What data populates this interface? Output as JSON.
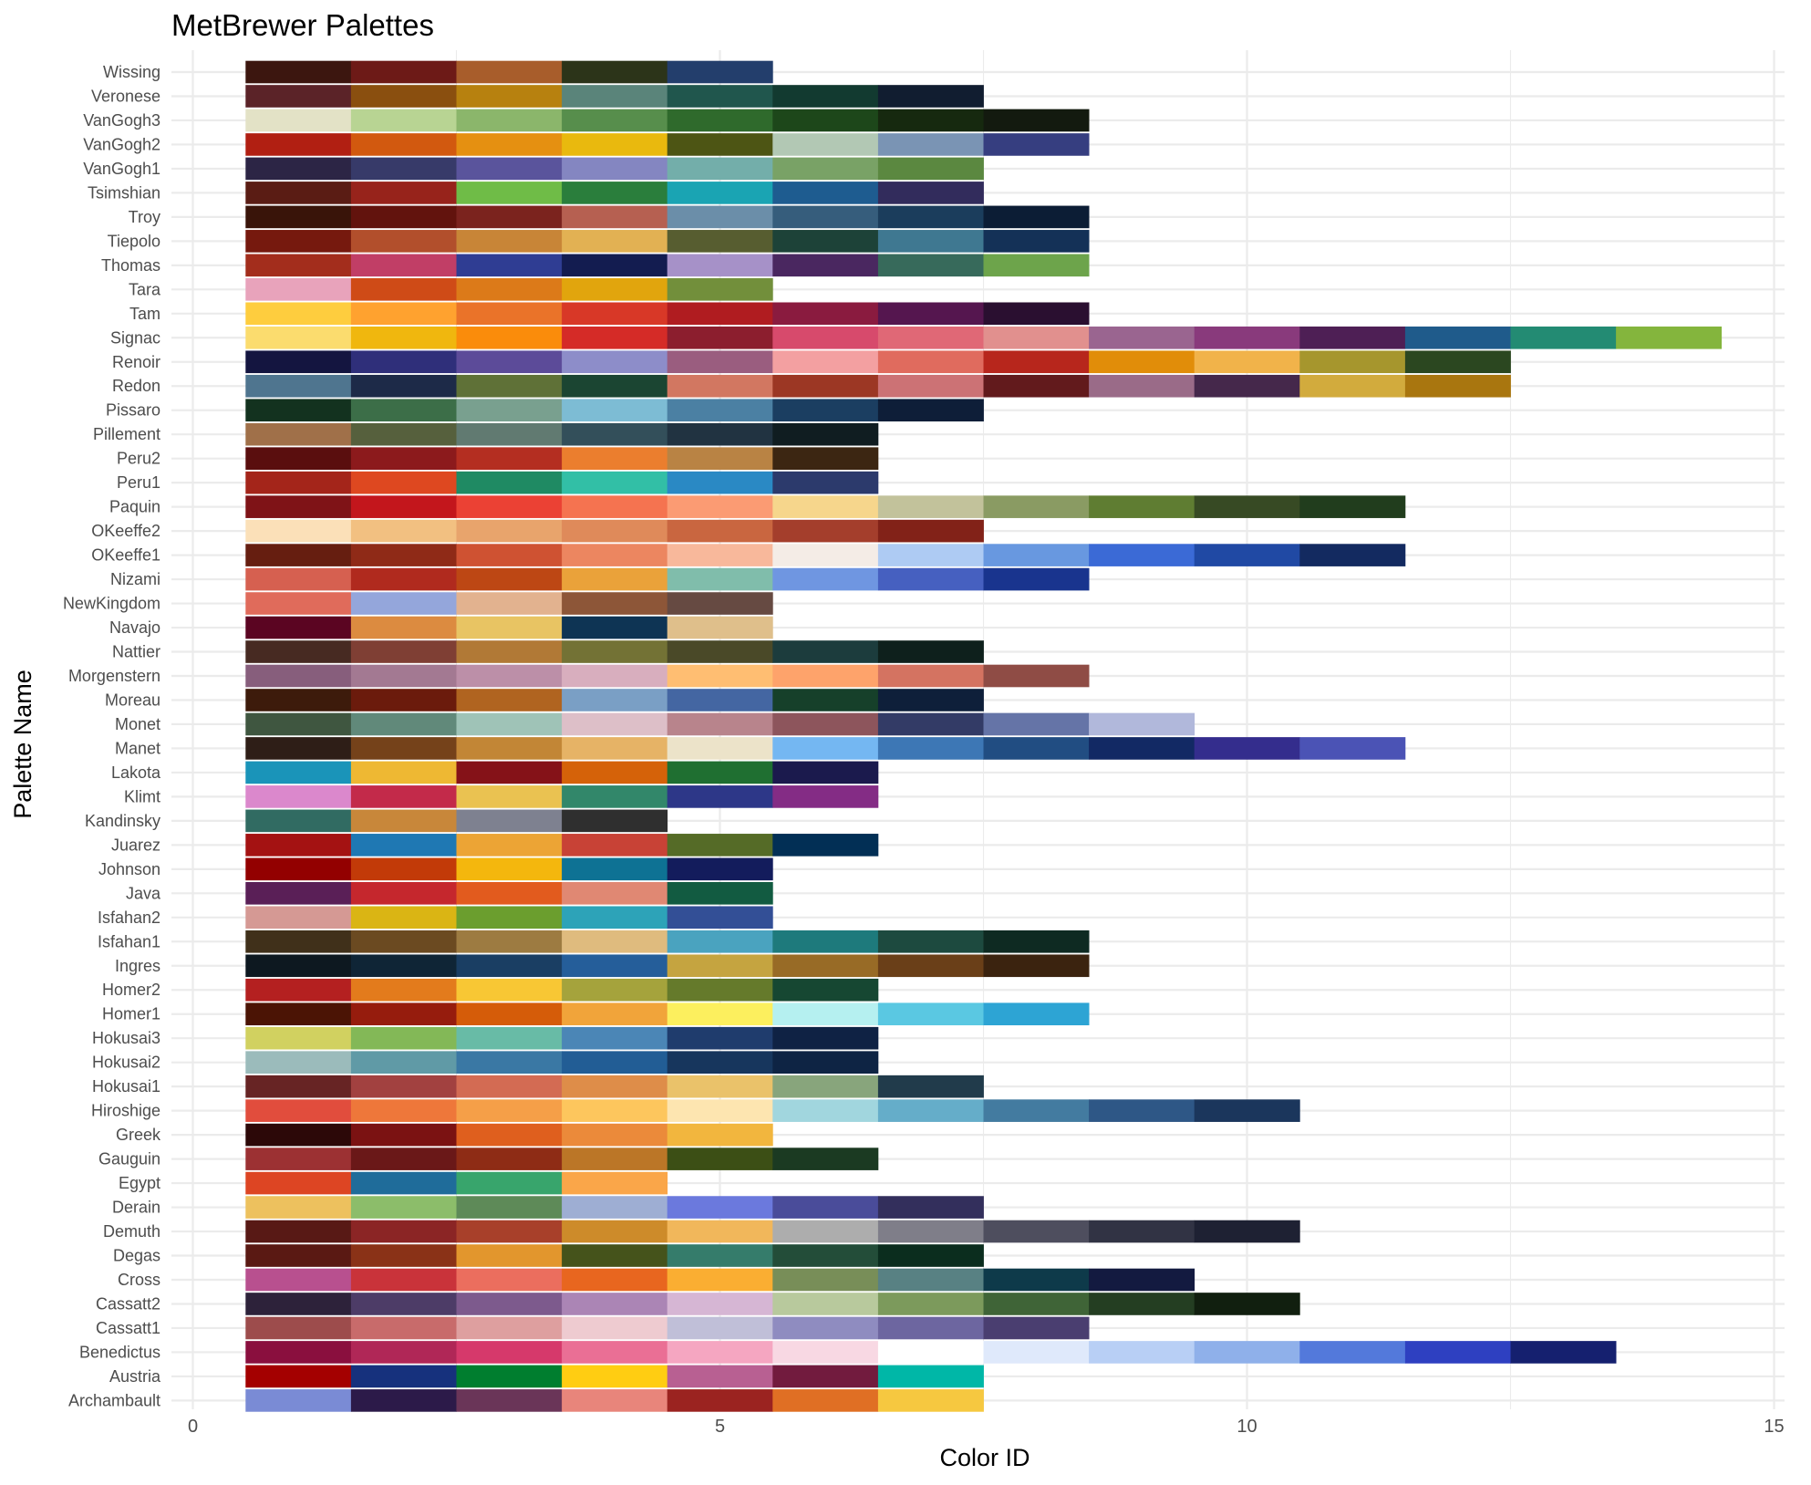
{
  "chart_data": {
    "type": "heatmap",
    "title": "MetBrewer Palettes",
    "xlabel": "Color ID",
    "ylabel": "Palette Name",
    "xlim": [
      -0.2,
      15
    ],
    "x_ticks": [
      0,
      5,
      10,
      15
    ],
    "grid": "on",
    "palettes": [
      {
        "name": "Archambault",
        "colors": [
          "#7a8bd5",
          "#2c1a49",
          "#6a3558",
          "#e8857b",
          "#9b2320",
          "#e06f24",
          "#f6c840"
        ]
      },
      {
        "name": "Austria",
        "colors": [
          "#a40000",
          "#16317d",
          "#007e2f",
          "#ffcd12",
          "#b86092",
          "#721b3e",
          "#00b7a7"
        ]
      },
      {
        "name": "Benedictus",
        "colors": [
          "#8a0f3e",
          "#b02757",
          "#d6396b",
          "#ea6f95",
          "#f5a6c1",
          "#f8d8e3",
          "#ffffff",
          "#dfe9fb",
          "#b8cff5",
          "#8fb0ea",
          "#5379db",
          "#2e40c1",
          "#15206f"
        ]
      },
      {
        "name": "Cassatt1",
        "colors": [
          "#9d4c4c",
          "#c86b6b",
          "#de9f9f",
          "#eecbd0",
          "#c0bfd8",
          "#8f8cc0",
          "#6d66a0",
          "#4a3e70"
        ]
      },
      {
        "name": "Cassatt2",
        "colors": [
          "#2d223a",
          "#4d3c67",
          "#7d5a8d",
          "#ab85b5",
          "#d6b6d4",
          "#b8c99d",
          "#7c9a5c",
          "#3f6437",
          "#243e22",
          "#111f0f"
        ]
      },
      {
        "name": "Cross",
        "colors": [
          "#b8508f",
          "#c9333a",
          "#eb6e5e",
          "#e8661f",
          "#faae32",
          "#788e58",
          "#588183",
          "#0e3a4a",
          "#131a40"
        ]
      },
      {
        "name": "Degas",
        "colors": [
          "#5a1913",
          "#8a3217",
          "#e2962d",
          "#45531b",
          "#357c6b",
          "#234d39",
          "#0b2d1e"
        ]
      },
      {
        "name": "Demuth",
        "colors": [
          "#581915",
          "#8b2525",
          "#a8402a",
          "#cd8b2a",
          "#f1b75b",
          "#adadad",
          "#7f7e89",
          "#4e4e5e",
          "#313344",
          "#1e2133"
        ]
      },
      {
        "name": "Derain",
        "colors": [
          "#edc15e",
          "#8cbd6a",
          "#5e8a58",
          "#9eaed3",
          "#6b79dd",
          "#4a4c9a",
          "#332f5c"
        ]
      },
      {
        "name": "Egypt",
        "colors": [
          "#dd4523",
          "#1f6c9a",
          "#38a56c",
          "#faa649"
        ]
      },
      {
        "name": "Gauguin",
        "colors": [
          "#9c3133",
          "#6a1818",
          "#8e2c15",
          "#bb7627",
          "#3c4f15",
          "#1b3a22"
        ]
      },
      {
        "name": "Greek",
        "colors": [
          "#2c0808",
          "#7b1212",
          "#df5f1e",
          "#eb8a3a",
          "#f2b63e"
        ]
      },
      {
        "name": "Hiroshige",
        "colors": [
          "#e14d3d",
          "#ee773a",
          "#f59f48",
          "#fdc65d",
          "#fde5b0",
          "#a1d6de",
          "#65adc9",
          "#437ba0",
          "#2e5786",
          "#1b365c"
        ]
      },
      {
        "name": "Hokusai1",
        "colors": [
          "#672424",
          "#a24140",
          "#d36b53",
          "#de8d49",
          "#eac26a",
          "#88a57c",
          "#213b4b"
        ]
      },
      {
        "name": "Hokusai2",
        "colors": [
          "#9bbbbb",
          "#609aa6",
          "#3a78a4",
          "#225d95",
          "#17365d",
          "#0e2444"
        ]
      },
      {
        "name": "Hokusai3",
        "colors": [
          "#d1d160",
          "#83b857",
          "#68bba6",
          "#4b86b6",
          "#1f3c6d",
          "#0f2244"
        ]
      },
      {
        "name": "Homer1",
        "colors": [
          "#4b1405",
          "#961c0d",
          "#d55c09",
          "#f1a43a",
          "#fcef5e",
          "#b5f0f0",
          "#5ac8e2",
          "#2da4d4"
        ]
      },
      {
        "name": "Homer2",
        "colors": [
          "#b42020",
          "#e37b1c",
          "#f8c734",
          "#a5a33c",
          "#657a2b",
          "#164732"
        ]
      },
      {
        "name": "Ingres",
        "colors": [
          "#0d1820",
          "#0f2536",
          "#1a3e63",
          "#255e9a",
          "#c5a440",
          "#986b26",
          "#6a3f18",
          "#3b230f"
        ]
      },
      {
        "name": "Isfahan1",
        "colors": [
          "#40301a",
          "#6b4a21",
          "#9d7b41",
          "#dfbb7e",
          "#4aa3bf",
          "#1e7a7c",
          "#1d4a3f",
          "#0e2a22"
        ]
      },
      {
        "name": "Isfahan2",
        "colors": [
          "#d59994",
          "#dab514",
          "#6b9e2e",
          "#2da3b8",
          "#334f96"
        ]
      },
      {
        "name": "Java",
        "colors": [
          "#5a1f57",
          "#c5272d",
          "#e25b1e",
          "#e08873",
          "#125b41"
        ]
      },
      {
        "name": "Johnson",
        "colors": [
          "#930000",
          "#c23a08",
          "#f4b70d",
          "#0e7294",
          "#131c5c"
        ]
      },
      {
        "name": "Juarez",
        "colors": [
          "#a41212",
          "#1f78b3",
          "#eca435",
          "#c84236",
          "#556b27",
          "#022f55"
        ]
      },
      {
        "name": "Kandinsky",
        "colors": [
          "#316b62",
          "#c8873a",
          "#7e8190",
          "#2f2f2f"
        ]
      },
      {
        "name": "Klimt",
        "colors": [
          "#db88cc",
          "#c32a4a",
          "#eac251",
          "#32876a",
          "#2d3788",
          "#842c85"
        ]
      },
      {
        "name": "Lakota",
        "colors": [
          "#1a94b9",
          "#eeb833",
          "#851218",
          "#d56209",
          "#1f6f31",
          "#1b1a4d"
        ]
      },
      {
        "name": "Manet",
        "colors": [
          "#2e1e17",
          "#75421a",
          "#c28636",
          "#e6b366",
          "#ece3c9",
          "#74b7f2",
          "#3d77b5",
          "#214d82",
          "#122964",
          "#342d8d",
          "#4b53b5"
        ]
      },
      {
        "name": "Monet",
        "colors": [
          "#3f5640",
          "#61897a",
          "#9fc3b7",
          "#ddbfc8",
          "#b8848c",
          "#8d555c",
          "#333b66",
          "#6574a7",
          "#b1b8db"
        ]
      },
      {
        "name": "Moreau",
        "colors": [
          "#3d1b0b",
          "#6b1b0c",
          "#b06420",
          "#7a9fc5",
          "#4466a2",
          "#16402a",
          "#0e1f3a"
        ]
      },
      {
        "name": "Morgenstern",
        "colors": [
          "#875e7c",
          "#a37992",
          "#bc8fa8",
          "#d8aebe",
          "#ffbe72",
          "#fea36b",
          "#d47361",
          "#8f4c45"
        ]
      },
      {
        "name": "Nattier",
        "colors": [
          "#472a22",
          "#7f3f34",
          "#b17936",
          "#737235",
          "#4a4928",
          "#1c3c3d",
          "#0e201c"
        ]
      },
      {
        "name": "Navajo",
        "colors": [
          "#5b0522",
          "#dc8b40",
          "#e8c463",
          "#0e3454",
          "#dfbf8b"
        ]
      },
      {
        "name": "NewKingdom",
        "colors": [
          "#e06b5b",
          "#94a6db",
          "#e2b28f",
          "#8d5638",
          "#664a42"
        ]
      },
      {
        "name": "Nizami",
        "colors": [
          "#d66050",
          "#b02a1e",
          "#bd4714",
          "#eaa23a",
          "#80bdab",
          "#6f96e1",
          "#4660c0",
          "#19348e"
        ]
      },
      {
        "name": "OKeeffe1",
        "colors": [
          "#661e10",
          "#8f2a17",
          "#cf5232",
          "#ec8660",
          "#f8b89b",
          "#f4ece6",
          "#aecbf3",
          "#6898e0",
          "#3b6ad6",
          "#2049a4",
          "#132a60"
        ]
      },
      {
        "name": "OKeeffe2",
        "colors": [
          "#fbe0b8",
          "#f2c081",
          "#e8a46c",
          "#df8a5a",
          "#c96640",
          "#a43e2c",
          "#822218"
        ]
      },
      {
        "name": "Paquin",
        "colors": [
          "#7f1317",
          "#c3161c",
          "#eb4134",
          "#f57350",
          "#fb9b73",
          "#f6d68c",
          "#c2c29b",
          "#8a9b63",
          "#5f7d32",
          "#374a24",
          "#213d1d"
        ]
      },
      {
        "name": "Peru1",
        "colors": [
          "#a4251a",
          "#de4820",
          "#1f8a63",
          "#32bfa6",
          "#2a89c4",
          "#2c3a6c"
        ]
      },
      {
        "name": "Peru2",
        "colors": [
          "#5a0e0e",
          "#8c1a1c",
          "#b42e21",
          "#eb7e2e",
          "#b98344",
          "#3c2612"
        ]
      },
      {
        "name": "Pillement",
        "colors": [
          "#a07049",
          "#56603d",
          "#617a71",
          "#334f5a",
          "#213341",
          "#101d21"
        ]
      },
      {
        "name": "Pissaro",
        "colors": [
          "#13321f",
          "#3c6e48",
          "#79a08f",
          "#7dbcd4",
          "#4b80a3",
          "#1b3e61",
          "#0e1e38"
        ]
      },
      {
        "name": "Redon",
        "colors": [
          "#4f758f",
          "#1d2a48",
          "#5f7137",
          "#1b4532",
          "#d27761",
          "#9c3724",
          "#cc7275",
          "#621a1c",
          "#9a6b88",
          "#45284b",
          "#d2ab3d",
          "#a9760f"
        ]
      },
      {
        "name": "Renoir",
        "colors": [
          "#141540",
          "#2f2f7a",
          "#5c4b99",
          "#8d8dc9",
          "#9a5d7f",
          "#f3a0a1",
          "#e06b5e",
          "#b7261c",
          "#e18d09",
          "#f1b34a",
          "#a6962d",
          "#2b4720"
        ]
      },
      {
        "name": "Signac",
        "colors": [
          "#fbdc6e",
          "#f0b70e",
          "#fa8c0b",
          "#d52b27",
          "#8c1e2e",
          "#d74a6c",
          "#e06876",
          "#e1908e",
          "#9a6590",
          "#893a7c",
          "#4e1f55",
          "#1f5b8b",
          "#238b73",
          "#84b53d"
        ]
      },
      {
        "name": "Tam",
        "colors": [
          "#fecd3e",
          "#ffa22f",
          "#ea7329",
          "#d83827",
          "#b01c20",
          "#8a1b3f",
          "#55164f",
          "#2a0f30"
        ]
      },
      {
        "name": "Tara",
        "colors": [
          "#e8a3bb",
          "#cf4b17",
          "#dc7a19",
          "#e1a50d",
          "#728f3b"
        ]
      },
      {
        "name": "Thomas",
        "colors": [
          "#a32d1c",
          "#c13e66",
          "#2f3d93",
          "#131c50",
          "#a691c8",
          "#4a2760",
          "#376a5b",
          "#6da44b"
        ]
      },
      {
        "name": "Tiepolo",
        "colors": [
          "#76190e",
          "#b24f2c",
          "#c88537",
          "#e2b153",
          "#575d30",
          "#1d4238",
          "#3f7891",
          "#143157"
        ]
      },
      {
        "name": "Troy",
        "colors": [
          "#391409",
          "#62130d",
          "#7b231e",
          "#b66051",
          "#6b8ea9",
          "#365d7c",
          "#1b3d5c",
          "#0c1d35"
        ]
      },
      {
        "name": "Tsimshian",
        "colors": [
          "#5a1c14",
          "#97231b",
          "#6fbc47",
          "#2a7e3c",
          "#1aa4b3",
          "#1e5c90",
          "#322c5c"
        ]
      },
      {
        "name": "VanGogh1",
        "colors": [
          "#2c2545",
          "#373a69",
          "#5a549c",
          "#8486c1",
          "#73aeaa",
          "#79a266",
          "#5b8840"
        ]
      },
      {
        "name": "VanGogh2",
        "colors": [
          "#b11f12",
          "#d2590f",
          "#e59011",
          "#e9b90e",
          "#4d5514",
          "#b2c8b4",
          "#7a94b4",
          "#363e80"
        ]
      },
      {
        "name": "VanGogh3",
        "colors": [
          "#e3e2c6",
          "#b8d493",
          "#8bb66b",
          "#578e4c",
          "#2f6a2c",
          "#1d471a",
          "#16290f",
          "#131a0f"
        ]
      },
      {
        "name": "Veronese",
        "colors": [
          "#5b2328",
          "#8a4f0f",
          "#b7810f",
          "#5a847a",
          "#20564d",
          "#123a30",
          "#111d30"
        ]
      },
      {
        "name": "Wissing",
        "colors": [
          "#3c160f",
          "#6d1a17",
          "#a85d2b",
          "#2c3419",
          "#233e6c"
        ]
      }
    ]
  }
}
